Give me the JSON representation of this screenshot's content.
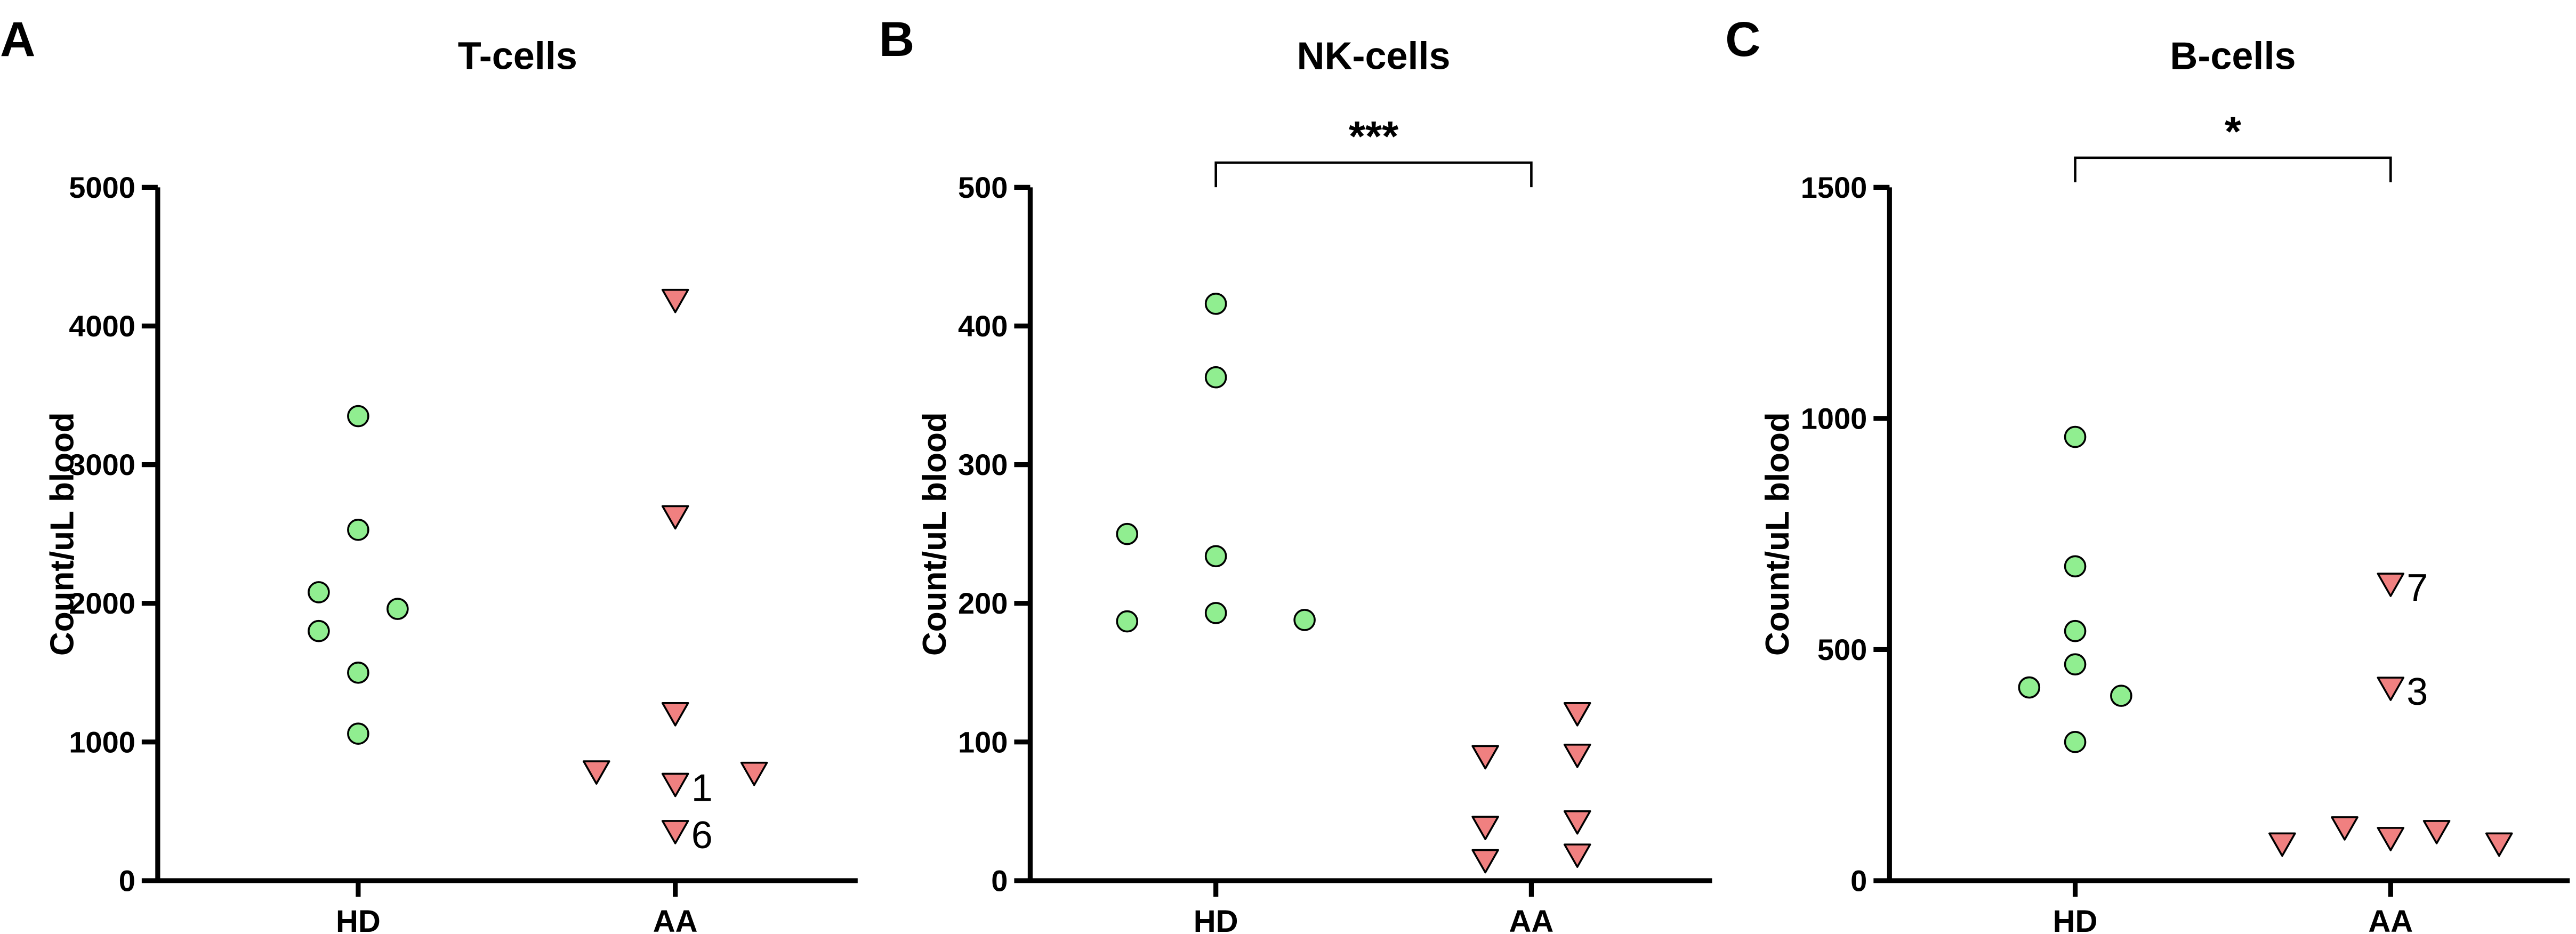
{
  "chart_data": [
    {
      "type": "scatter",
      "panel_label": "A",
      "title": "T-cells",
      "xlabel": "",
      "ylabel": "Count/uL blood",
      "categories": [
        "HD",
        "AA"
      ],
      "ylim": [
        0,
        5000
      ],
      "yticks": [
        "0",
        "1000",
        "2000",
        "3000",
        "4000",
        "5000"
      ],
      "ytick_values": [
        0,
        1000,
        2000,
        3000,
        4000,
        5000
      ],
      "significance": null,
      "series": [
        {
          "name": "HD",
          "marker": "circle",
          "color": "#90EE90",
          "points": [
            {
              "offset": 0,
              "value": 3350
            },
            {
              "offset": 0,
              "value": 2530
            },
            {
              "offset": -0.12,
              "value": 2080
            },
            {
              "offset": 0.12,
              "value": 1960
            },
            {
              "offset": -0.12,
              "value": 1800
            },
            {
              "offset": 0,
              "value": 1500
            },
            {
              "offset": 0,
              "value": 1060
            }
          ]
        },
        {
          "name": "AA",
          "marker": "triangle-down",
          "color": "#F08080",
          "points": [
            {
              "offset": 0,
              "value": 4180
            },
            {
              "offset": 0,
              "value": 2620
            },
            {
              "offset": 0,
              "value": 1200
            },
            {
              "offset": -0.24,
              "value": 780
            },
            {
              "offset": 0.24,
              "value": 770
            },
            {
              "offset": 0,
              "value": 690,
              "label": "1"
            },
            {
              "offset": 0,
              "value": 350,
              "label": "6"
            }
          ]
        }
      ]
    },
    {
      "type": "scatter",
      "panel_label": "B",
      "title": "NK-cells",
      "xlabel": "",
      "ylabel": "Count/uL blood",
      "categories": [
        "HD",
        "AA"
      ],
      "ylim": [
        0,
        500
      ],
      "yticks": [
        "0",
        "100",
        "200",
        "300",
        "400",
        "500"
      ],
      "ytick_values": [
        0,
        100,
        200,
        300,
        400,
        500
      ],
      "significance": "***",
      "series": [
        {
          "name": "HD",
          "marker": "circle",
          "color": "#90EE90",
          "points": [
            {
              "offset": 0,
              "value": 416
            },
            {
              "offset": 0,
              "value": 363
            },
            {
              "offset": -0.27,
              "value": 250
            },
            {
              "offset": 0,
              "value": 234
            },
            {
              "offset": 0,
              "value": 193
            },
            {
              "offset": -0.27,
              "value": 187
            },
            {
              "offset": 0.27,
              "value": 188
            }
          ]
        },
        {
          "name": "AA",
          "marker": "triangle-down",
          "color": "#F08080",
          "points": [
            {
              "offset": 0.14,
              "value": 120
            },
            {
              "offset": -0.14,
              "value": 89
            },
            {
              "offset": 0.14,
              "value": 90
            },
            {
              "offset": -0.14,
              "value": 38
            },
            {
              "offset": 0.14,
              "value": 42
            },
            {
              "offset": -0.14,
              "value": 14
            },
            {
              "offset": 0.14,
              "value": 18
            }
          ]
        }
      ]
    },
    {
      "type": "scatter",
      "panel_label": "C",
      "title": "B-cells",
      "xlabel": "",
      "ylabel": "Count/uL blood",
      "categories": [
        "HD",
        "AA"
      ],
      "ylim": [
        0,
        1500
      ],
      "yticks": [
        "0",
        "500",
        "1000",
        "1500"
      ],
      "ytick_values": [
        0,
        500,
        1000,
        1500
      ],
      "significance": "*",
      "series": [
        {
          "name": "HD",
          "marker": "circle",
          "color": "#90EE90",
          "points": [
            {
              "offset": 0,
              "value": 960
            },
            {
              "offset": 0,
              "value": 680
            },
            {
              "offset": 0,
              "value": 540
            },
            {
              "offset": 0,
              "value": 468
            },
            {
              "offset": -0.14,
              "value": 418
            },
            {
              "offset": 0.14,
              "value": 400
            },
            {
              "offset": 0,
              "value": 300
            }
          ]
        },
        {
          "name": "AA",
          "marker": "triangle-down",
          "color": "#F08080",
          "points": [
            {
              "offset": 0,
              "value": 640,
              "label": "7"
            },
            {
              "offset": 0,
              "value": 415,
              "label": "3"
            },
            {
              "offset": -0.33,
              "value": 78
            },
            {
              "offset": -0.14,
              "value": 113
            },
            {
              "offset": 0,
              "value": 90
            },
            {
              "offset": 0.14,
              "value": 105
            },
            {
              "offset": 0.33,
              "value": 78
            }
          ]
        }
      ]
    }
  ]
}
